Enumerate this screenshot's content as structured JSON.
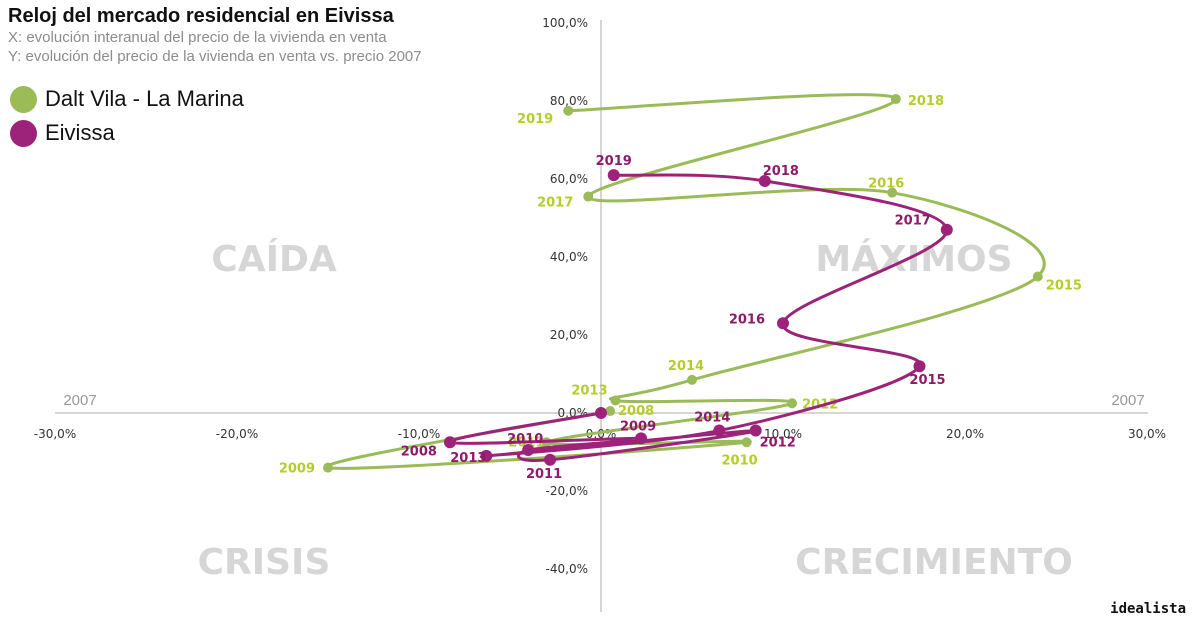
{
  "chart_data": {
    "type": "scatter",
    "title": "Reloj del mercado residencial en Eivissa",
    "subtitle_x": "X: evolución interanual del precio de la vivienda en venta",
    "subtitle_y": "Y: evolución del precio de la vivienda en venta vs. precio 2007",
    "xlim": [
      -30,
      30
    ],
    "ylim": [
      -50,
      100
    ],
    "x_ticks": [
      -30,
      -20,
      -10,
      0,
      10,
      20,
      30
    ],
    "x_tick_labels": [
      "-30,0%",
      "-20,0%",
      "-10,0%",
      "0,0%",
      "10,0%",
      "20,0%",
      "30,0%"
    ],
    "y_ticks": [
      100,
      80,
      60,
      40,
      20,
      0,
      -20,
      -40
    ],
    "y_tick_labels": [
      "100,0%",
      "80,0%",
      "60,0%",
      "40,0%",
      "20,0%",
      "0,0%",
      "-20,0%",
      "-40,0%"
    ],
    "reference_label_left": "2007",
    "reference_label_right": "2007",
    "quadrants": [
      "CAÍDA",
      "MÁXIMOS",
      "CRISIS",
      "CRECIMIENTO"
    ],
    "series": [
      {
        "name": "Dalt Vila - La Marina",
        "color": "#9bbb59",
        "label_color": "#b5cc2a",
        "points": [
          {
            "year": "2008",
            "x": 0.5,
            "y": 0.5
          },
          {
            "year": "2009",
            "x": -15,
            "y": -14
          },
          {
            "year": "2010",
            "x": 8,
            "y": -7.5
          },
          {
            "year": "2011",
            "x": -3,
            "y": -7.5
          },
          {
            "year": "2012",
            "x": 10.5,
            "y": 2.5
          },
          {
            "year": "2013",
            "x": 0.8,
            "y": 3.2
          },
          {
            "year": "2014",
            "x": 5,
            "y": 8.5
          },
          {
            "year": "2015",
            "x": 24,
            "y": 35
          },
          {
            "year": "2016",
            "x": 16,
            "y": 56.5
          },
          {
            "year": "2017",
            "x": -0.7,
            "y": 55.5
          },
          {
            "year": "2018",
            "x": 16.2,
            "y": 80.5
          },
          {
            "year": "2019",
            "x": -1.8,
            "y": 77.5
          }
        ]
      },
      {
        "name": "Eivissa",
        "color": "#9c2379",
        "label_color": "#8e1b6a",
        "points": [
          {
            "year": "2007",
            "x": 0,
            "y": 0
          },
          {
            "year": "2008",
            "x": -8.3,
            "y": -7.5
          },
          {
            "year": "2009",
            "x": 2.2,
            "y": -6.5
          },
          {
            "year": "2010",
            "x": -4,
            "y": -9.5
          },
          {
            "year": "2011",
            "x": -2.8,
            "y": -12
          },
          {
            "year": "2012",
            "x": 8.5,
            "y": -4.5
          },
          {
            "year": "2013",
            "x": -6.3,
            "y": -11
          },
          {
            "year": "2014",
            "x": 6.5,
            "y": -4.5
          },
          {
            "year": "2015",
            "x": 17.5,
            "y": 12
          },
          {
            "year": "2016",
            "x": 10,
            "y": 23
          },
          {
            "year": "2017",
            "x": 19,
            "y": 47
          },
          {
            "year": "2018",
            "x": 9,
            "y": 59.5
          },
          {
            "year": "2019",
            "x": 0.7,
            "y": 61
          }
        ]
      }
    ]
  },
  "brand": "idealista"
}
